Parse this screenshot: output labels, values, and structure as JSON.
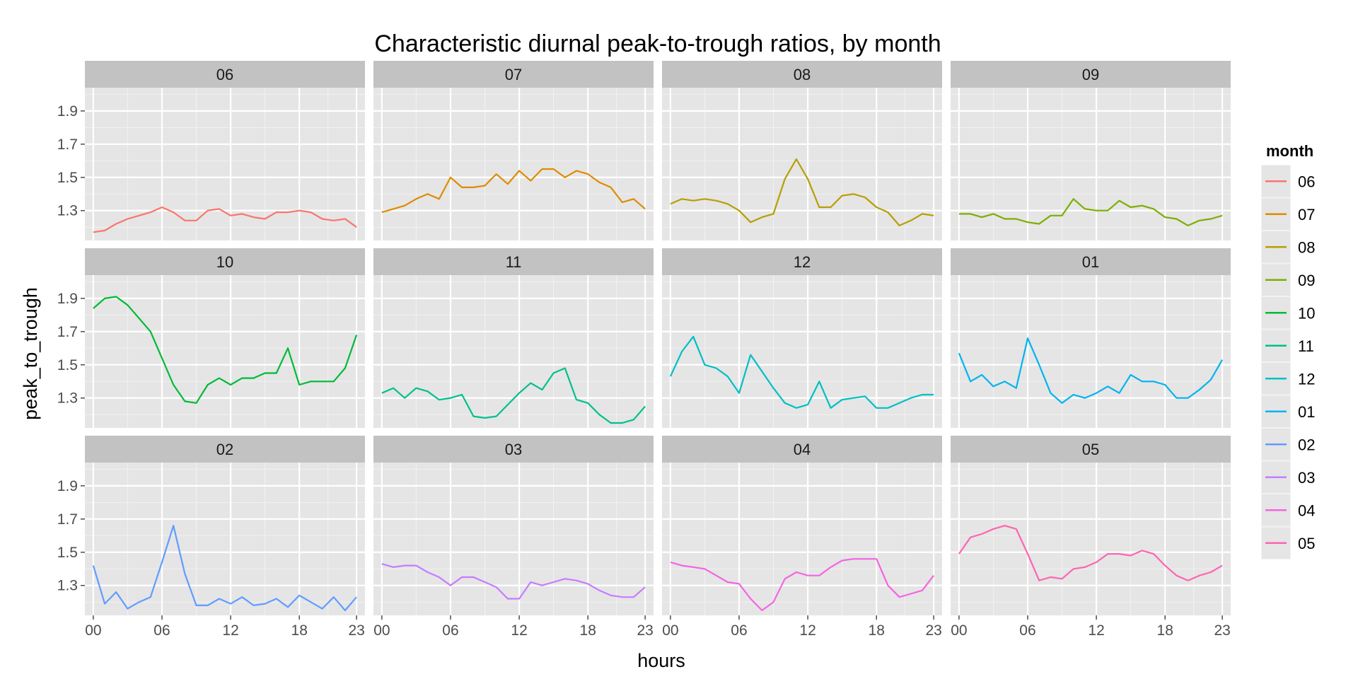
{
  "chart_data": {
    "type": "line",
    "title": "Characteristic diurnal peak-to-trough ratios, by month",
    "xlabel": "hours",
    "ylabel": "peak_to_trough",
    "xlim": [
      0,
      23
    ],
    "ylim": [
      1.12,
      2.04
    ],
    "x_tick_labels": [
      "00",
      "06",
      "12",
      "18",
      "23"
    ],
    "x_tick_values": [
      0,
      6,
      12,
      18,
      23
    ],
    "y_tick_labels": [
      "1.3",
      "1.5",
      "1.7",
      "1.9"
    ],
    "y_tick_values": [
      1.3,
      1.5,
      1.7,
      1.9
    ],
    "grid": true,
    "facet_layout": {
      "rows": 3,
      "cols": 4
    },
    "legend": {
      "title": "month",
      "position": "right"
    },
    "x": [
      0,
      1,
      2,
      3,
      4,
      5,
      6,
      7,
      8,
      9,
      10,
      11,
      12,
      13,
      14,
      15,
      16,
      17,
      18,
      19,
      20,
      21,
      22,
      23
    ],
    "series": [
      {
        "name": "06",
        "color": "#F8766D",
        "values": [
          1.17,
          1.18,
          1.22,
          1.25,
          1.27,
          1.29,
          1.32,
          1.29,
          1.24,
          1.24,
          1.3,
          1.31,
          1.27,
          1.28,
          1.26,
          1.25,
          1.29,
          1.29,
          1.3,
          1.29,
          1.25,
          1.24,
          1.25,
          1.2
        ]
      },
      {
        "name": "07",
        "color": "#DE8C00",
        "values": [
          1.29,
          1.31,
          1.33,
          1.37,
          1.4,
          1.37,
          1.5,
          1.44,
          1.44,
          1.45,
          1.52,
          1.46,
          1.54,
          1.48,
          1.55,
          1.55,
          1.5,
          1.54,
          1.52,
          1.47,
          1.44,
          1.35,
          1.37,
          1.31
        ]
      },
      {
        "name": "08",
        "color": "#B79F00",
        "values": [
          1.34,
          1.37,
          1.36,
          1.37,
          1.36,
          1.34,
          1.3,
          1.23,
          1.26,
          1.28,
          1.49,
          1.61,
          1.49,
          1.32,
          1.32,
          1.39,
          1.4,
          1.38,
          1.32,
          1.29,
          1.21,
          1.24,
          1.28,
          1.27
        ]
      },
      {
        "name": "09",
        "color": "#7CAE00",
        "values": [
          1.28,
          1.28,
          1.26,
          1.28,
          1.25,
          1.25,
          1.23,
          1.22,
          1.27,
          1.27,
          1.37,
          1.31,
          1.3,
          1.3,
          1.36,
          1.32,
          1.33,
          1.31,
          1.26,
          1.25,
          1.21,
          1.24,
          1.25,
          1.27
        ]
      },
      {
        "name": "10",
        "color": "#00BA38",
        "values": [
          1.84,
          1.9,
          1.91,
          1.86,
          1.78,
          1.7,
          1.54,
          1.38,
          1.28,
          1.27,
          1.38,
          1.42,
          1.38,
          1.42,
          1.42,
          1.45,
          1.45,
          1.6,
          1.38,
          1.4,
          1.4,
          1.4,
          1.48,
          1.68
        ]
      },
      {
        "name": "11",
        "color": "#00C08B",
        "values": [
          1.33,
          1.36,
          1.3,
          1.36,
          1.34,
          1.29,
          1.3,
          1.32,
          1.19,
          1.18,
          1.19,
          1.26,
          1.33,
          1.39,
          1.35,
          1.45,
          1.48,
          1.29,
          1.27,
          1.2,
          1.15,
          1.15,
          1.17,
          1.25
        ]
      },
      {
        "name": "12",
        "color": "#00BFC4",
        "values": [
          1.43,
          1.58,
          1.67,
          1.5,
          1.48,
          1.43,
          1.33,
          1.56,
          1.46,
          1.36,
          1.27,
          1.24,
          1.26,
          1.4,
          1.24,
          1.29,
          1.3,
          1.31,
          1.24,
          1.24,
          1.27,
          1.3,
          1.32,
          1.32
        ]
      },
      {
        "name": "01",
        "color": "#00B4F0",
        "values": [
          1.57,
          1.4,
          1.44,
          1.37,
          1.4,
          1.36,
          1.66,
          1.5,
          1.33,
          1.27,
          1.32,
          1.3,
          1.33,
          1.37,
          1.33,
          1.44,
          1.4,
          1.4,
          1.38,
          1.3,
          1.3,
          1.35,
          1.41,
          1.53
        ]
      },
      {
        "name": "02",
        "color": "#619CFF",
        "values": [
          1.42,
          1.19,
          1.26,
          1.16,
          1.2,
          1.23,
          1.44,
          1.66,
          1.37,
          1.18,
          1.18,
          1.22,
          1.19,
          1.23,
          1.18,
          1.19,
          1.22,
          1.17,
          1.24,
          1.2,
          1.16,
          1.23,
          1.15,
          1.23
        ]
      },
      {
        "name": "03",
        "color": "#C77CFF",
        "values": [
          1.43,
          1.41,
          1.42,
          1.42,
          1.38,
          1.35,
          1.3,
          1.35,
          1.35,
          1.32,
          1.29,
          1.22,
          1.22,
          1.32,
          1.3,
          1.32,
          1.34,
          1.33,
          1.31,
          1.27,
          1.24,
          1.23,
          1.23,
          1.29
        ]
      },
      {
        "name": "04",
        "color": "#F564E3",
        "values": [
          1.44,
          1.42,
          1.41,
          1.4,
          1.36,
          1.32,
          1.31,
          1.22,
          1.15,
          1.2,
          1.34,
          1.38,
          1.36,
          1.36,
          1.41,
          1.45,
          1.46,
          1.46,
          1.46,
          1.3,
          1.23,
          1.25,
          1.27,
          1.36
        ]
      },
      {
        "name": "05",
        "color": "#FF64B0",
        "values": [
          1.49,
          1.59,
          1.61,
          1.64,
          1.66,
          1.64,
          1.49,
          1.33,
          1.35,
          1.34,
          1.4,
          1.41,
          1.44,
          1.49,
          1.49,
          1.48,
          1.51,
          1.49,
          1.42,
          1.36,
          1.33,
          1.36,
          1.38,
          1.42
        ]
      }
    ]
  }
}
